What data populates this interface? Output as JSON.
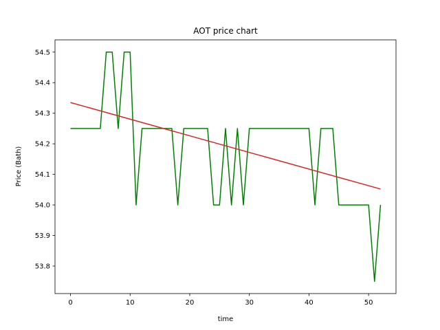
{
  "chart_data": {
    "type": "line",
    "title": "AOT price chart",
    "xlabel": "time",
    "ylabel": "Price (Bath)",
    "xlim": [
      -2.6,
      54.6
    ],
    "ylim": [
      53.71,
      54.54
    ],
    "xticks": [
      0,
      10,
      20,
      30,
      40,
      50
    ],
    "yticks": [
      53.8,
      53.9,
      54.0,
      54.1,
      54.2,
      54.3,
      54.4,
      54.5
    ],
    "ytick_labels": [
      "53.8",
      "53.9",
      "54.0",
      "54.1",
      "54.2",
      "54.3",
      "54.4",
      "54.5"
    ],
    "grid": false,
    "series": [
      {
        "color": "#008000",
        "x": [
          0,
          1,
          2,
          3,
          4,
          5,
          6,
          7,
          8,
          9,
          10,
          11,
          12,
          13,
          14,
          15,
          16,
          17,
          18,
          19,
          20,
          21,
          22,
          23,
          24,
          25,
          26,
          27,
          28,
          29,
          30,
          31,
          32,
          33,
          34,
          35,
          36,
          37,
          38,
          39,
          40,
          41,
          42,
          43,
          44,
          45,
          46,
          47,
          48,
          49,
          50,
          51,
          52
        ],
        "y": [
          54.25,
          54.25,
          54.25,
          54.25,
          54.25,
          54.25,
          54.5,
          54.5,
          54.25,
          54.5,
          54.5,
          54.0,
          54.25,
          54.25,
          54.25,
          54.25,
          54.25,
          54.25,
          54.0,
          54.25,
          54.25,
          54.25,
          54.25,
          54.25,
          54.0,
          54.0,
          54.25,
          54.0,
          54.25,
          54.0,
          54.25,
          54.25,
          54.25,
          54.25,
          54.25,
          54.25,
          54.25,
          54.25,
          54.25,
          54.25,
          54.25,
          54.0,
          54.25,
          54.25,
          54.25,
          54.0,
          54.0,
          54.0,
          54.0,
          54.0,
          54.0,
          53.75,
          54.0
        ]
      },
      {
        "color": "#d62728",
        "x": [
          0,
          52
        ],
        "y": [
          54.335,
          54.052
        ]
      }
    ]
  }
}
